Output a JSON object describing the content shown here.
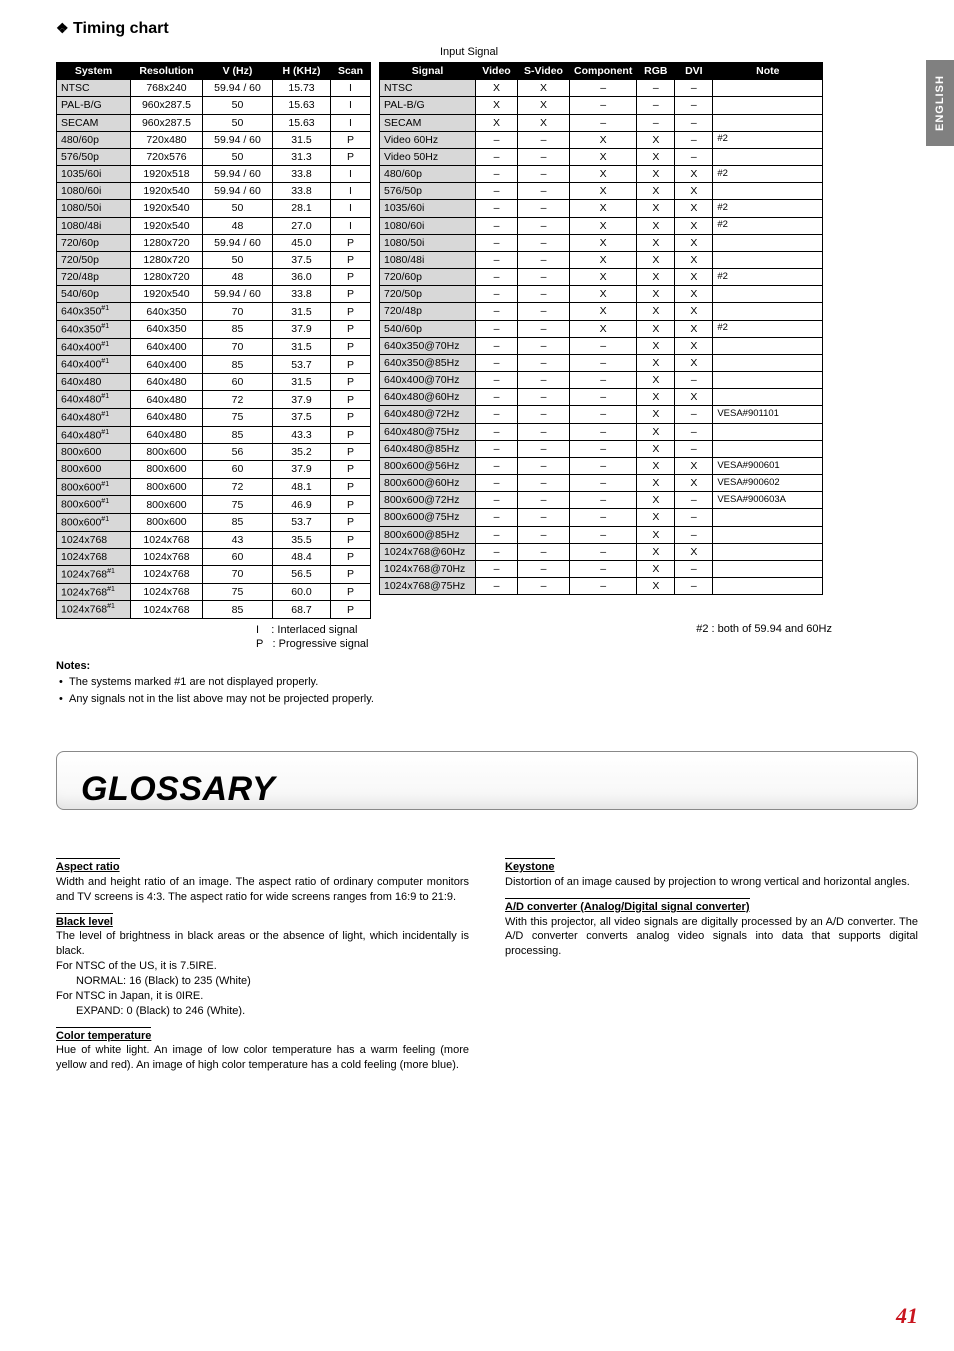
{
  "sideTab": "ENGLISH",
  "heading": "Timing chart",
  "inputSignalLabel": "Input Signal",
  "table1": {
    "headers": [
      "System",
      "Resolution",
      "V (Hz)",
      "H (KHz)",
      "Scan"
    ],
    "rows": [
      [
        "NTSC",
        "768x240",
        "59.94 / 60",
        "15.73",
        "I"
      ],
      [
        "PAL-B/G",
        "960x287.5",
        "50",
        "15.63",
        "I"
      ],
      [
        "SECAM",
        "960x287.5",
        "50",
        "15.63",
        "I"
      ],
      [
        "480/60p",
        "720x480",
        "59.94 / 60",
        "31.5",
        "P"
      ],
      [
        "576/50p",
        "720x576",
        "50",
        "31.3",
        "P"
      ],
      [
        "1035/60i",
        "1920x518",
        "59.94 / 60",
        "33.8",
        "I"
      ],
      [
        "1080/60i",
        "1920x540",
        "59.94 / 60",
        "33.8",
        "I"
      ],
      [
        "1080/50i",
        "1920x540",
        "50",
        "28.1",
        "I"
      ],
      [
        "1080/48i",
        "1920x540",
        "48",
        "27.0",
        "I"
      ],
      [
        "720/60p",
        "1280x720",
        "59.94 / 60",
        "45.0",
        "P"
      ],
      [
        "720/50p",
        "1280x720",
        "50",
        "37.5",
        "P"
      ],
      [
        "720/48p",
        "1280x720",
        "48",
        "36.0",
        "P"
      ],
      [
        "540/60p",
        "1920x540",
        "59.94 / 60",
        "33.8",
        "P"
      ],
      [
        "640x350#1",
        "640x350",
        "70",
        "31.5",
        "P"
      ],
      [
        "640x350#1",
        "640x350",
        "85",
        "37.9",
        "P"
      ],
      [
        "640x400#1",
        "640x400",
        "70",
        "31.5",
        "P"
      ],
      [
        "640x400#1",
        "640x400",
        "85",
        "53.7",
        "P"
      ],
      [
        "640x480",
        "640x480",
        "60",
        "31.5",
        "P"
      ],
      [
        "640x480#1",
        "640x480",
        "72",
        "37.9",
        "P"
      ],
      [
        "640x480#1",
        "640x480",
        "75",
        "37.5",
        "P"
      ],
      [
        "640x480#1",
        "640x480",
        "85",
        "43.3",
        "P"
      ],
      [
        "800x600",
        "800x600",
        "56",
        "35.2",
        "P"
      ],
      [
        "800x600",
        "800x600",
        "60",
        "37.9",
        "P"
      ],
      [
        "800x600#1",
        "800x600",
        "72",
        "48.1",
        "P"
      ],
      [
        "800x600#1",
        "800x600",
        "75",
        "46.9",
        "P"
      ],
      [
        "800x600#1",
        "800x600",
        "85",
        "53.7",
        "P"
      ],
      [
        "1024x768",
        "1024x768",
        "43",
        "35.5",
        "P"
      ],
      [
        "1024x768",
        "1024x768",
        "60",
        "48.4",
        "P"
      ],
      [
        "1024x768#1",
        "1024x768",
        "70",
        "56.5",
        "P"
      ],
      [
        "1024x768#1",
        "1024x768",
        "75",
        "60.0",
        "P"
      ],
      [
        "1024x768#1",
        "1024x768",
        "85",
        "68.7",
        "P"
      ]
    ]
  },
  "table2": {
    "headers": [
      "Signal",
      "Video",
      "S-Video",
      "Component",
      "RGB",
      "DVI",
      "Note"
    ],
    "rows": [
      [
        "NTSC",
        "X",
        "X",
        "–",
        "–",
        "–",
        ""
      ],
      [
        "PAL-B/G",
        "X",
        "X",
        "–",
        "–",
        "–",
        ""
      ],
      [
        "SECAM",
        "X",
        "X",
        "–",
        "–",
        "–",
        ""
      ],
      [
        "Video 60Hz",
        "–",
        "–",
        "X",
        "X",
        "–",
        "#2"
      ],
      [
        "Video 50Hz",
        "–",
        "–",
        "X",
        "X",
        "–",
        ""
      ],
      [
        "480/60p",
        "–",
        "–",
        "X",
        "X",
        "X",
        "#2"
      ],
      [
        "576/50p",
        "–",
        "–",
        "X",
        "X",
        "X",
        ""
      ],
      [
        "1035/60i",
        "–",
        "–",
        "X",
        "X",
        "X",
        "#2"
      ],
      [
        "1080/60i",
        "–",
        "–",
        "X",
        "X",
        "X",
        "#2"
      ],
      [
        "1080/50i",
        "–",
        "–",
        "X",
        "X",
        "X",
        ""
      ],
      [
        "1080/48i",
        "–",
        "–",
        "X",
        "X",
        "X",
        ""
      ],
      [
        "720/60p",
        "–",
        "–",
        "X",
        "X",
        "X",
        "#2"
      ],
      [
        "720/50p",
        "–",
        "–",
        "X",
        "X",
        "X",
        ""
      ],
      [
        "720/48p",
        "–",
        "–",
        "X",
        "X",
        "X",
        ""
      ],
      [
        "540/60p",
        "–",
        "–",
        "X",
        "X",
        "X",
        "#2"
      ],
      [
        "640x350@70Hz",
        "–",
        "–",
        "–",
        "X",
        "X",
        ""
      ],
      [
        "640x350@85Hz",
        "–",
        "–",
        "–",
        "X",
        "X",
        ""
      ],
      [
        "640x400@70Hz",
        "–",
        "–",
        "–",
        "X",
        "–",
        ""
      ],
      [
        "640x480@60Hz",
        "–",
        "–",
        "–",
        "X",
        "X",
        ""
      ],
      [
        "640x480@72Hz",
        "–",
        "–",
        "–",
        "X",
        "–",
        "VESA#901101"
      ],
      [
        "640x480@75Hz",
        "–",
        "–",
        "–",
        "X",
        "–",
        ""
      ],
      [
        "640x480@85Hz",
        "–",
        "–",
        "–",
        "X",
        "–",
        ""
      ],
      [
        "800x600@56Hz",
        "–",
        "–",
        "–",
        "X",
        "X",
        "VESA#900601"
      ],
      [
        "800x600@60Hz",
        "–",
        "–",
        "–",
        "X",
        "X",
        "VESA#900602"
      ],
      [
        "800x600@72Hz",
        "–",
        "–",
        "–",
        "X",
        "–",
        "VESA#900603A"
      ],
      [
        "800x600@75Hz",
        "–",
        "–",
        "–",
        "X",
        "–",
        ""
      ],
      [
        "800x600@85Hz",
        "–",
        "–",
        "–",
        "X",
        "–",
        ""
      ],
      [
        "1024x768@60Hz",
        "–",
        "–",
        "–",
        "X",
        "X",
        ""
      ],
      [
        "1024x768@70Hz",
        "–",
        "–",
        "–",
        "X",
        "–",
        ""
      ],
      [
        "1024x768@75Hz",
        "–",
        "–",
        "–",
        "X",
        "–",
        ""
      ]
    ]
  },
  "legend": {
    "l1": "I    : Interlaced signal",
    "l2": "P   : Progressive signal"
  },
  "note2": "#2  : both of 59.94 and 60Hz",
  "notesHeading": "Notes:",
  "notesBul1": "The systems marked #1 are not displayed properly.",
  "notesBul2": "Any signals not in the list above may not be projected properly.",
  "glossaryTitle": "GLOSSARY",
  "glossary": {
    "aspect": {
      "t": "Aspect ratio",
      "b": "Width and height ratio of an image. The aspect ratio of ordinary computer monitors and TV screens is 4:3. The aspect ratio for wide screens ranges from 16:9 to 21:9."
    },
    "black": {
      "t": "Black level",
      "b1": "The level of brightness in black areas or the absence of light, which incidentally is black.",
      "b2": "For NTSC of the US, it is 7.5IRE.",
      "b3": "NORMAL: 16 (Black) to 235 (White)",
      "b4": "For NTSC in Japan, it is 0IRE.",
      "b5": "EXPAND: 0 (Black) to 246 (White)."
    },
    "color": {
      "t": "Color temperature",
      "b": "Hue of white light. An image of low color temperature has a warm feeling (more yellow and red). An image of high color temperature has a cold feeling (more blue)."
    },
    "keystone": {
      "t": "Keystone",
      "b": "Distortion of an image caused by projection to wrong vertical and horizontal angles."
    },
    "ad": {
      "t": "A/D converter (Analog/Digital signal converter)",
      "b": "With this projector, all video signals are digitally processed by an A/D converter. The A/D converter converts analog video signals into data that supports digital processing."
    }
  },
  "pageNum": "41"
}
